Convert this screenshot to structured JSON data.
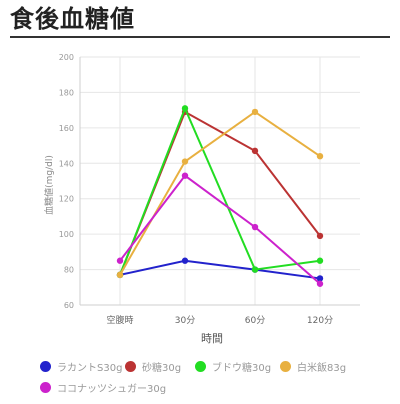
{
  "page": {
    "title": "食後血糖値"
  },
  "chart_data": {
    "type": "line",
    "title": "食後血糖値",
    "xlabel": "時間",
    "ylabel": "血糖値(mg/dl)",
    "categories": [
      "空腹時",
      "30分",
      "60分",
      "120分"
    ],
    "ylim": [
      60,
      200
    ],
    "yticks": [
      60,
      80,
      100,
      120,
      140,
      160,
      180,
      200
    ],
    "grid": true,
    "legend_position": "bottom",
    "series": [
      {
        "name": "ラカントS30g",
        "color": "#2222cc",
        "values": [
          77,
          85,
          80,
          75
        ]
      },
      {
        "name": "砂糖30g",
        "color": "#bb3333",
        "values": [
          77,
          169,
          147,
          99
        ]
      },
      {
        "name": "ブドウ糖30g",
        "color": "#22dd22",
        "values": [
          77,
          171,
          80,
          85
        ]
      },
      {
        "name": "白米飯83g",
        "color": "#e8b040",
        "values": [
          77,
          141,
          169,
          144
        ]
      },
      {
        "name": "ココナッツシュガー30g",
        "color": "#cc22cc",
        "values": [
          85,
          133,
          104,
          72
        ]
      }
    ]
  }
}
